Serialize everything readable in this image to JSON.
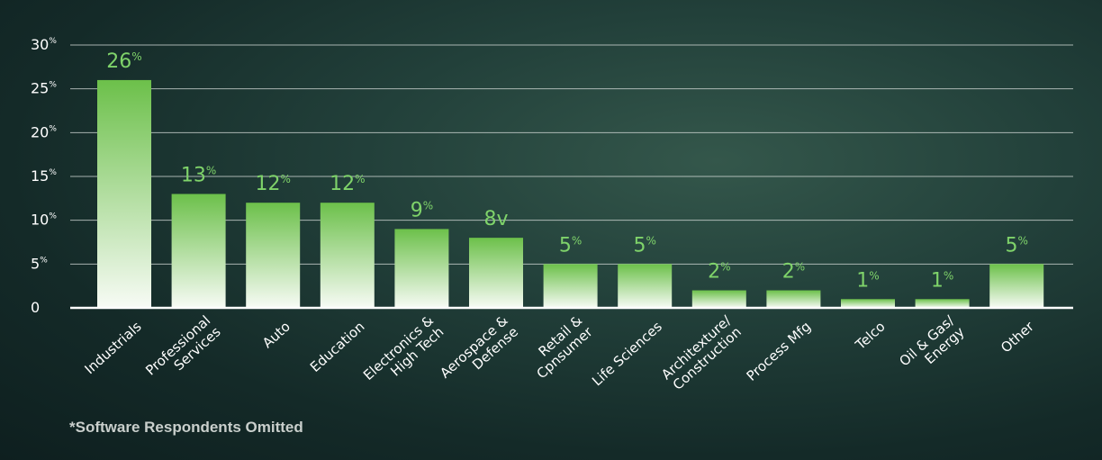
{
  "chart_data": {
    "type": "bar",
    "categories": [
      "Industrials",
      "Professional\nServices",
      "Auto",
      "Education",
      "Electronics &\nHigh Tech",
      "Aerospace &\nDefense",
      "Retail &\nCpnsumer",
      "Life Sciences",
      "Architexture/\nConstruction",
      "Process Mfg",
      "Telco",
      "Oil & Gas/\nEnergy",
      "Other"
    ],
    "values": [
      26,
      13,
      12,
      12,
      9,
      8,
      5,
      5,
      2,
      2,
      1,
      1,
      5
    ],
    "data_labels": [
      {
        "num": "26",
        "suffix": "%"
      },
      {
        "num": "13",
        "suffix": "%"
      },
      {
        "num": "12",
        "suffix": "%"
      },
      {
        "num": "12",
        "suffix": "%"
      },
      {
        "num": "9",
        "suffix": "%"
      },
      {
        "num": "8v",
        "suffix": ""
      },
      {
        "num": "5",
        "suffix": "%"
      },
      {
        "num": "5",
        "suffix": "%"
      },
      {
        "num": "2",
        "suffix": "%"
      },
      {
        "num": "2",
        "suffix": "%"
      },
      {
        "num": "1",
        "suffix": "%"
      },
      {
        "num": "1",
        "suffix": "%"
      },
      {
        "num": "5",
        "suffix": "%"
      }
    ],
    "yticks": [
      {
        "value": 0,
        "num": "0",
        "suffix": ""
      },
      {
        "value": 5,
        "num": "5",
        "suffix": "%"
      },
      {
        "value": 10,
        "num": "10",
        "suffix": "%"
      },
      {
        "value": 15,
        "num": "15",
        "suffix": "%"
      },
      {
        "value": 20,
        "num": "20",
        "suffix": "%"
      },
      {
        "value": 25,
        "num": "25",
        "suffix": "%"
      },
      {
        "value": 30,
        "num": "30",
        "suffix": "%"
      }
    ],
    "ylim": [
      0,
      30
    ],
    "grid": true,
    "colors": {
      "bar_top": "#6cc04a",
      "bar_bottom": "#f7fbf5",
      "data_label": "#7fd36a",
      "grid": "#d8dedb",
      "axis": "#ffffff"
    }
  },
  "footnote": "*Software Respondents Omitted"
}
